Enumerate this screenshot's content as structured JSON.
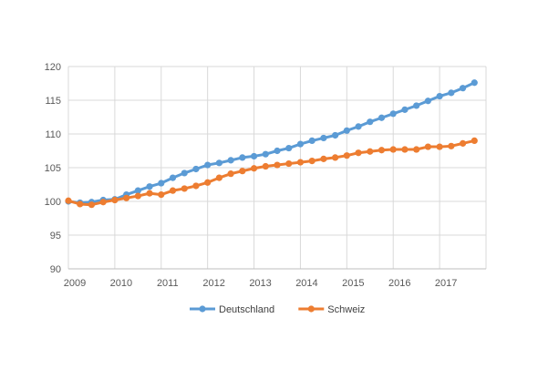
{
  "chart_data": {
    "type": "line",
    "title": "",
    "xlabel": "",
    "ylabel": "",
    "ylim": [
      90,
      120
    ],
    "yticks": [
      90,
      95,
      100,
      105,
      110,
      115,
      120
    ],
    "xlim": [
      2009.0,
      2018.0
    ],
    "xticks": [
      2009,
      2010,
      2011,
      2012,
      2013,
      2014,
      2015,
      2016,
      2017
    ],
    "xtick_labels": [
      "2009",
      "2010",
      "2011",
      "2012",
      "2013",
      "2014",
      "2015",
      "2016",
      "2017"
    ],
    "grid": "vertical-and-horizontal",
    "legend": "bottom",
    "x": [
      2009.0,
      2009.25,
      2009.5,
      2009.75,
      2010.0,
      2010.25,
      2010.5,
      2010.75,
      2011.0,
      2011.25,
      2011.5,
      2011.75,
      2012.0,
      2012.25,
      2012.5,
      2012.75,
      2013.0,
      2013.25,
      2013.5,
      2013.75,
      2014.0,
      2014.25,
      2014.5,
      2014.75,
      2015.0,
      2015.25,
      2015.5,
      2015.75,
      2016.0,
      2016.25,
      2016.5,
      2016.75,
      2017.0,
      2017.25,
      2017.5,
      2017.75
    ],
    "series": [
      {
        "name": "Deutschland",
        "color": "#5b9bd5",
        "values": [
          100.0,
          99.8,
          99.9,
          100.2,
          100.3,
          101.0,
          101.6,
          102.2,
          102.7,
          103.5,
          104.2,
          104.8,
          105.4,
          105.7,
          106.1,
          106.5,
          106.7,
          107.0,
          107.5,
          107.9,
          108.5,
          109.0,
          109.4,
          109.8,
          110.5,
          111.1,
          111.8,
          112.4,
          113.0,
          113.6,
          114.2,
          114.9,
          115.6,
          116.1,
          116.8,
          117.6
        ]
      },
      {
        "name": "Schweiz",
        "color": "#ed7d31",
        "values": [
          100.1,
          99.6,
          99.5,
          99.9,
          100.2,
          100.5,
          100.8,
          101.2,
          101.0,
          101.6,
          101.9,
          102.3,
          102.8,
          103.5,
          104.1,
          104.5,
          104.9,
          105.2,
          105.4,
          105.6,
          105.8,
          106.0,
          106.3,
          106.5,
          106.8,
          107.2,
          107.4,
          107.6,
          107.7,
          107.7,
          107.7,
          108.1,
          108.1,
          108.2,
          108.6,
          109.0
        ]
      }
    ]
  }
}
